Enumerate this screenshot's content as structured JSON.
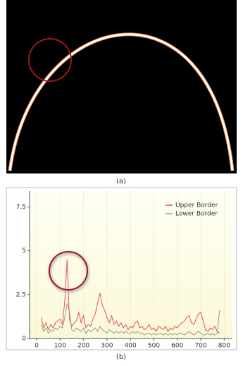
{
  "panel_a": {
    "caption": "(a)"
  },
  "chart_data": {
    "type": "line",
    "caption": "(b)",
    "x": [
      20,
      30,
      40,
      50,
      60,
      70,
      80,
      90,
      100,
      110,
      120,
      130,
      140,
      150,
      160,
      170,
      180,
      190,
      200,
      210,
      220,
      230,
      240,
      250,
      260,
      270,
      280,
      290,
      300,
      310,
      320,
      330,
      340,
      350,
      360,
      370,
      380,
      390,
      400,
      410,
      420,
      430,
      440,
      450,
      460,
      470,
      480,
      490,
      500,
      510,
      520,
      530,
      540,
      550,
      560,
      570,
      580,
      590,
      600,
      610,
      620,
      630,
      640,
      650,
      660,
      670,
      680,
      690,
      700,
      710,
      720,
      730,
      740,
      750,
      760,
      770,
      780
    ],
    "series": [
      {
        "name": "Upper Border",
        "color": "#d9585a",
        "values": [
          1.2,
          0.6,
          0.9,
          0.5,
          0.8,
          0.6,
          0.9,
          1.0,
          1.1,
          0.8,
          2.1,
          4.5,
          1.1,
          0.7,
          0.9,
          1.0,
          1.5,
          0.9,
          1.3,
          0.6,
          0.8,
          0.7,
          1.1,
          1.4,
          2.0,
          2.6,
          1.9,
          1.6,
          1.2,
          0.9,
          1.3,
          0.8,
          1.0,
          0.7,
          0.9,
          0.6,
          0.8,
          0.5,
          0.7,
          0.6,
          0.9,
          1.0,
          0.6,
          0.7,
          0.5,
          0.6,
          0.8,
          0.5,
          0.6,
          0.4,
          0.7,
          0.6,
          0.5,
          0.7,
          0.4,
          0.6,
          0.5,
          0.7,
          0.6,
          0.8,
          0.9,
          1.0,
          1.2,
          1.3,
          0.9,
          0.8,
          1.1,
          1.4,
          1.5,
          1.0,
          0.5,
          0.4,
          0.6,
          0.5,
          0.7,
          0.4,
          0.3
        ]
      },
      {
        "name": "Lower Border",
        "color": "#9a9a9a",
        "values": [
          0.8,
          0.4,
          0.6,
          0.3,
          0.5,
          0.4,
          0.6,
          0.5,
          0.7,
          0.6,
          1.2,
          2.0,
          1.5,
          0.5,
          0.4,
          0.6,
          0.5,
          0.4,
          0.6,
          0.3,
          0.5,
          0.4,
          0.5,
          0.6,
          0.4,
          0.7,
          0.5,
          0.4,
          0.3,
          0.5,
          0.4,
          0.3,
          0.4,
          0.3,
          0.4,
          0.3,
          0.4,
          0.3,
          0.3,
          0.4,
          0.3,
          0.4,
          0.3,
          0.3,
          0.2,
          0.3,
          0.3,
          0.2,
          0.3,
          0.2,
          0.3,
          0.3,
          0.2,
          0.3,
          0.2,
          0.3,
          0.2,
          0.3,
          0.2,
          0.3,
          0.3,
          0.2,
          0.3,
          0.4,
          0.3,
          0.2,
          0.3,
          0.4,
          0.3,
          0.2,
          0.2,
          0.3,
          0.2,
          0.3,
          0.2,
          0.3,
          1.6
        ]
      }
    ],
    "xlim": [
      -30,
      835
    ],
    "ylim": [
      0,
      8.4
    ],
    "xticks": [
      0,
      100,
      200,
      300,
      400,
      500,
      600,
      700,
      800
    ],
    "yticks": [
      0,
      2.5,
      5,
      7.5
    ],
    "grid": true,
    "legend": "top-right"
  }
}
